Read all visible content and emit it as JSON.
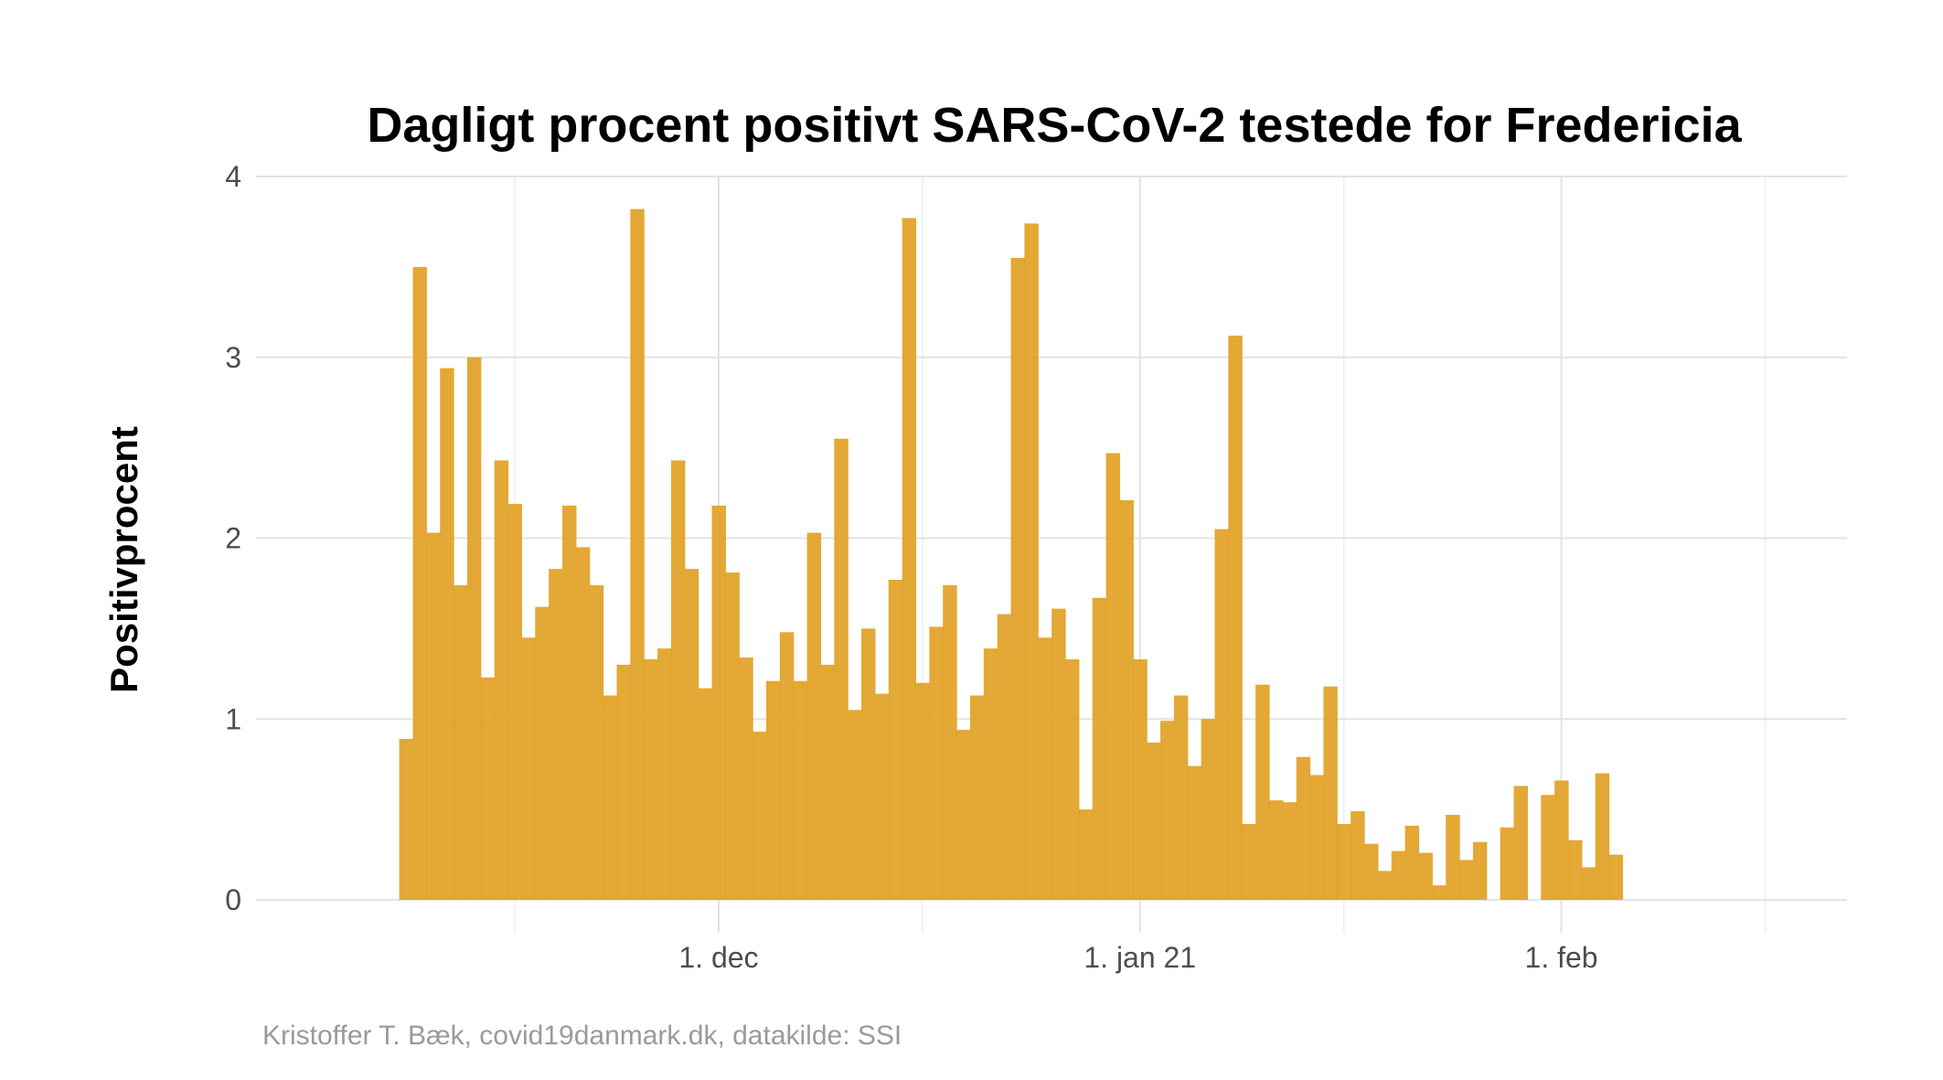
{
  "chart_data": {
    "type": "bar",
    "title": "Dagligt procent positivt SARS-CoV-2 testede for Fredericia",
    "xlabel": "",
    "ylabel": "Positivprocent",
    "caption": "Kristoffer T. Bæk, covid19danmark.dk, datakilde: SSI",
    "bar_color": "#E09F1F",
    "x_start_date": "2020-11-08",
    "x_end_date": "2021-02-18",
    "xlim": [
      "2020-11-01",
      "2021-02-20"
    ],
    "ylim": [
      0,
      4
    ],
    "y_ticks": [
      0,
      1,
      2,
      3,
      4
    ],
    "y_tick_labels": [
      "0",
      "1",
      "2",
      "3",
      "4"
    ],
    "x_ticks": [
      "2020-12-01",
      "2021-01-01",
      "2021-02-01"
    ],
    "x_tick_labels": [
      "1. dec",
      "1. jan 21",
      "1. feb"
    ],
    "x_minor_ticks": [
      "2020-11-16",
      "2020-12-16",
      "2021-01-16",
      "2021-02-16"
    ],
    "grid": true,
    "values": [
      0.89,
      3.5,
      2.03,
      2.94,
      1.74,
      3.0,
      1.23,
      2.43,
      2.19,
      1.45,
      1.62,
      1.83,
      2.18,
      1.95,
      1.74,
      1.13,
      1.3,
      3.82,
      1.33,
      1.39,
      2.43,
      1.83,
      1.17,
      2.18,
      1.81,
      1.34,
      0.93,
      1.21,
      1.48,
      1.21,
      2.03,
      1.3,
      2.55,
      1.05,
      1.5,
      1.14,
      1.77,
      3.77,
      1.2,
      1.51,
      1.74,
      0.94,
      1.13,
      1.39,
      1.58,
      3.55,
      3.74,
      1.45,
      1.61,
      1.33,
      0.5,
      1.67,
      2.47,
      2.21,
      1.33,
      0.87,
      0.99,
      1.13,
      0.74,
      1.0,
      2.05,
      3.12,
      0.42,
      1.19,
      0.55,
      0.54,
      0.79,
      0.69,
      1.18,
      0.42,
      0.49,
      0.31,
      0.16,
      0.27,
      0.41,
      0.26,
      0.08,
      0.47,
      0.22,
      0.32,
      0.0,
      0.4,
      0.63,
      0.0,
      0.58,
      0.66,
      0.33,
      0.18,
      0.7,
      0.25
    ]
  }
}
